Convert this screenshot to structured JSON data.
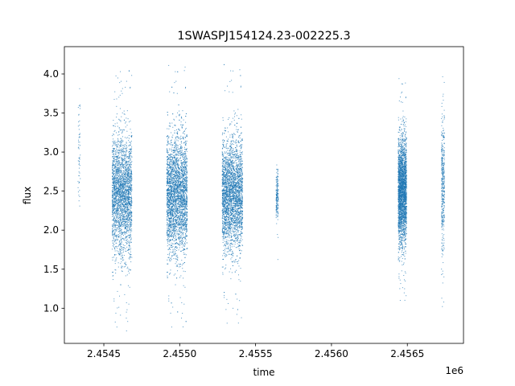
{
  "chart_data": {
    "type": "scatter",
    "title": "1SWASPJ154124.23-002225.3",
    "xlabel": "time",
    "ylabel": "flux",
    "x_offset_label": "1e6",
    "xlim": [
      2454240,
      2456870
    ],
    "ylim": [
      0.55,
      4.35
    ],
    "xticks": [
      {
        "value": 2454500,
        "label": "2.4545"
      },
      {
        "value": 2455000,
        "label": "2.4550"
      },
      {
        "value": 2455500,
        "label": "2.4555"
      },
      {
        "value": 2456000,
        "label": "2.4560"
      },
      {
        "value": 2456500,
        "label": "2.4565"
      }
    ],
    "yticks": [
      {
        "value": 1.0,
        "label": "1.0"
      },
      {
        "value": 1.5,
        "label": "1.5"
      },
      {
        "value": 2.0,
        "label": "2.0"
      },
      {
        "value": 2.5,
        "label": "2.5"
      },
      {
        "value": 3.0,
        "label": "3.0"
      },
      {
        "value": 3.5,
        "label": "3.5"
      },
      {
        "value": 4.0,
        "label": "4.0"
      }
    ],
    "grid": false,
    "marker_color": "#1f77b4",
    "series": [
      {
        "observing_seasons": [
          {
            "x_start": 2454330,
            "x_end": 2454345,
            "y_center": 2.95,
            "y_spread": 0.5,
            "y_min": 2.3,
            "y_max": 4.07,
            "density": 60
          },
          {
            "x_start": 2454555,
            "x_end": 2454685,
            "y_center": 2.45,
            "y_spread": 0.45,
            "y_min": 0.7,
            "y_max": 4.12,
            "density": 2600
          },
          {
            "x_start": 2454915,
            "x_end": 2455050,
            "y_center": 2.45,
            "y_spread": 0.45,
            "y_min": 0.7,
            "y_max": 4.12,
            "density": 3200
          },
          {
            "x_start": 2455280,
            "x_end": 2455415,
            "y_center": 2.45,
            "y_spread": 0.42,
            "y_min": 0.75,
            "y_max": 4.13,
            "density": 3000
          },
          {
            "x_start": 2455635,
            "x_end": 2455650,
            "y_center": 2.45,
            "y_spread": 0.2,
            "y_min": 1.6,
            "y_max": 2.96,
            "density": 180
          },
          {
            "x_start": 2456440,
            "x_end": 2456495,
            "y_center": 2.5,
            "y_spread": 0.4,
            "y_min": 1.05,
            "y_max": 3.95,
            "density": 2600
          },
          {
            "x_start": 2456725,
            "x_end": 2456745,
            "y_center": 2.6,
            "y_spread": 0.5,
            "y_min": 0.7,
            "y_max": 4.2,
            "density": 400
          }
        ]
      }
    ]
  }
}
